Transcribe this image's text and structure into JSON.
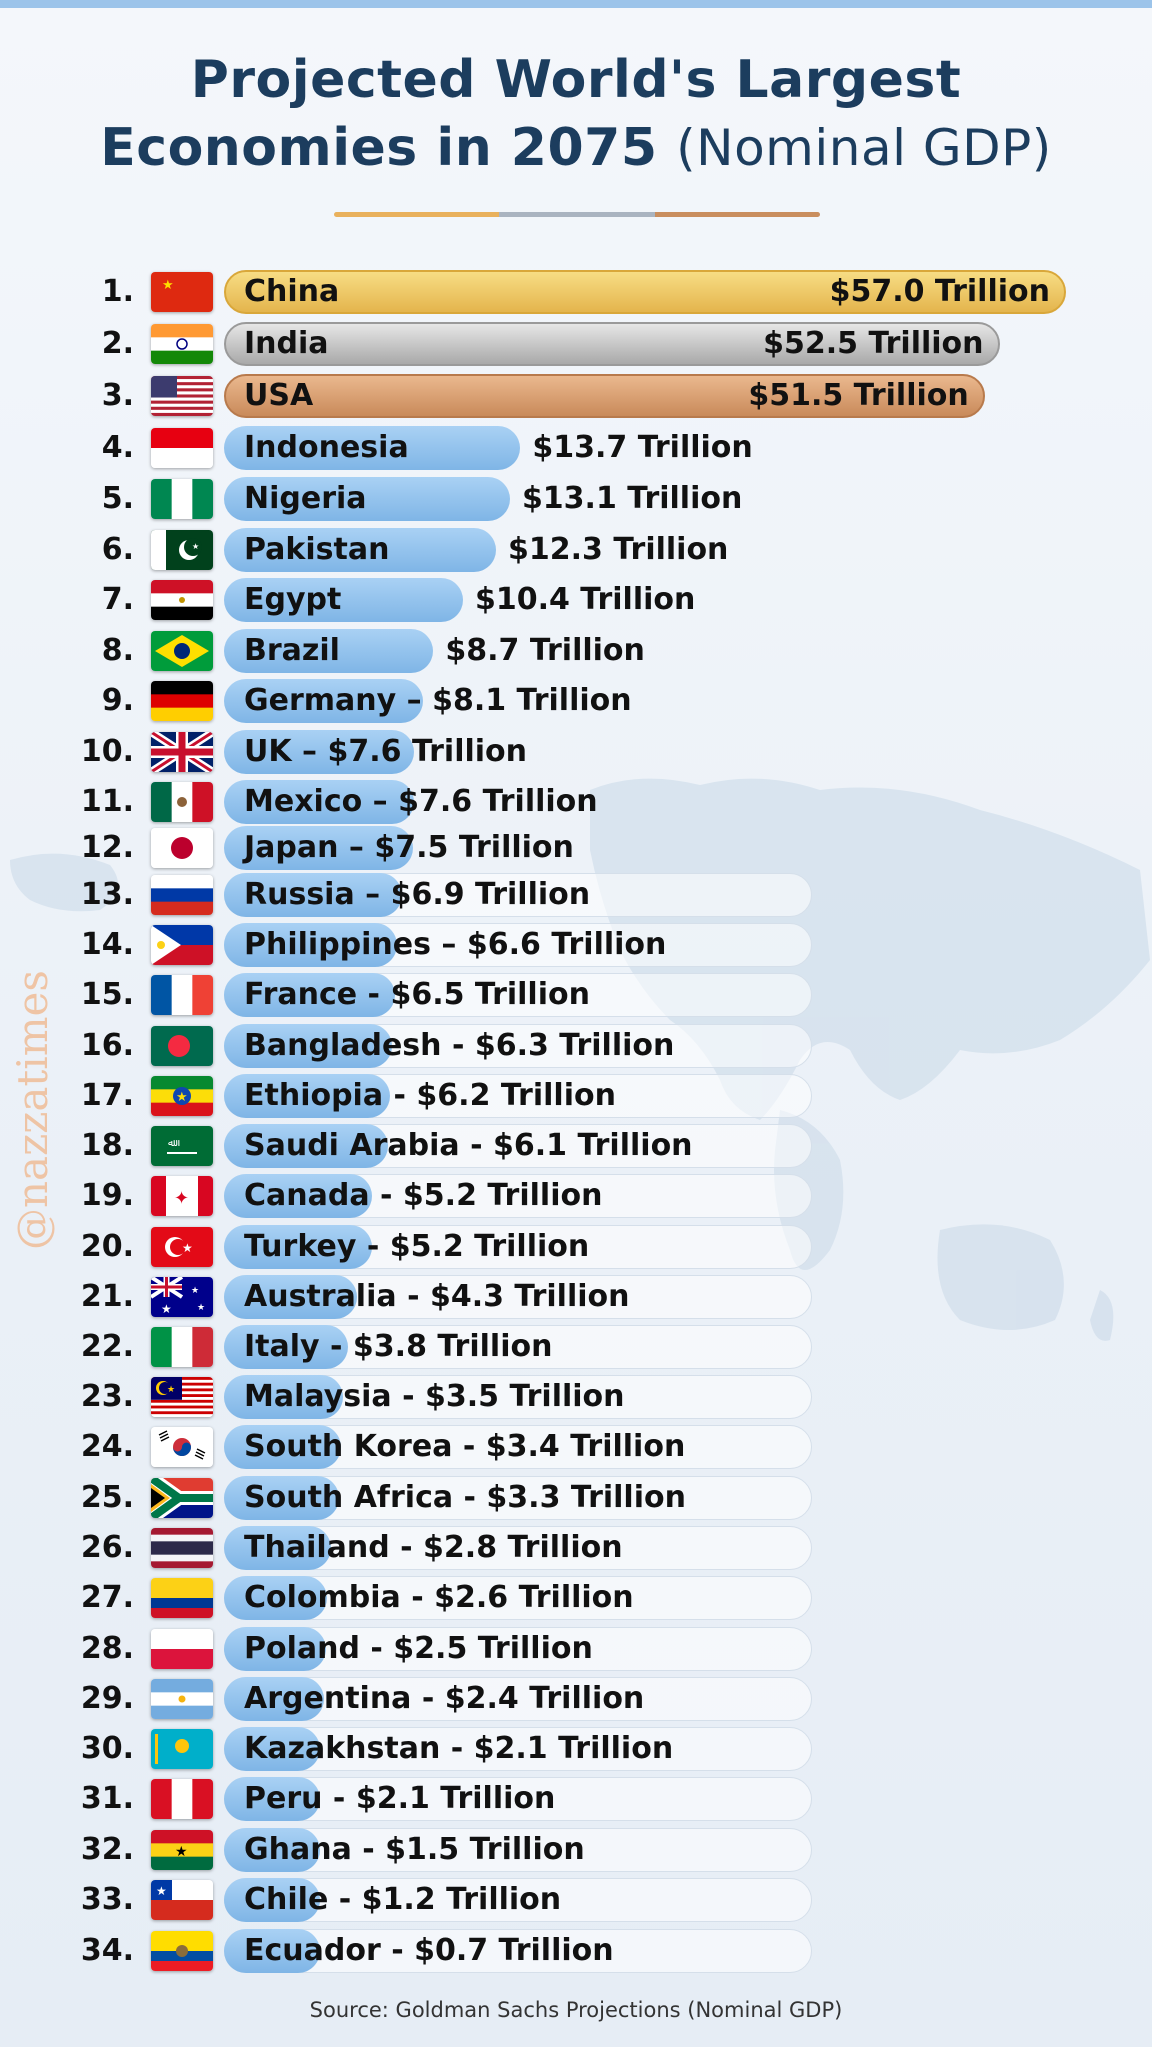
{
  "title_line1": "Projected World's Largest",
  "title_line2": "Economies in 2075",
  "title_paren": "(Nominal GDP)",
  "watermark": "@nazzatimes",
  "source": "Source: Goldman Sachs Projections (Nominal GDP)",
  "colors": {
    "title": "#1c3d5e",
    "gold": "#e4b54d",
    "silver": "#a9a9a9",
    "bronze": "#c98a5a",
    "bar_blue": "#7fb5e6"
  },
  "chart_data": {
    "type": "bar",
    "orientation": "horizontal",
    "unit": "Trillion",
    "grid": false,
    "rows": [
      {
        "rank": "1.",
        "country": "China",
        "value": 57.0,
        "label": "China",
        "value_label": "$57.0 Trillion",
        "flag": "cn"
      },
      {
        "rank": "2.",
        "country": "India",
        "value": 52.5,
        "label": "India",
        "value_label": "$52.5 Trillion",
        "flag": "in"
      },
      {
        "rank": "3.",
        "country": "USA",
        "value": 51.5,
        "label": "USA",
        "value_label": "$51.5 Trillion",
        "flag": "us"
      },
      {
        "rank": "4.",
        "country": "Indonesia",
        "value": 13.7,
        "label": "Indonesia",
        "value_label": "$13.7 Trillion",
        "flag": "id"
      },
      {
        "rank": "5.",
        "country": "Nigeria",
        "value": 13.1,
        "label": "Nigeria",
        "value_label": "$13.1 Trillion",
        "flag": "ng"
      },
      {
        "rank": "6.",
        "country": "Pakistan",
        "value": 12.3,
        "label": "Pakistan",
        "value_label": "$12.3 Trillion",
        "flag": "pk"
      },
      {
        "rank": "7.",
        "country": "Egypt",
        "value": 10.4,
        "label": "Egypt",
        "value_label": "$10.4 Trillion",
        "flag": "eg"
      },
      {
        "rank": "8.",
        "country": "Brazil",
        "value": 8.7,
        "label": "Brazil",
        "value_label": "$8.7 Trillion",
        "flag": "br"
      },
      {
        "rank": "9.",
        "country": "Germany",
        "value": 8.1,
        "label": "Germany – $8.1 Trillion",
        "flag": "de"
      },
      {
        "rank": "10.",
        "country": "UK",
        "value": 7.6,
        "label": "UK – $7.6 Trillion",
        "flag": "gb"
      },
      {
        "rank": "11.",
        "country": "Mexico",
        "value": 7.6,
        "label": "Mexico – $7.6 Trillion",
        "flag": "mx"
      },
      {
        "rank": "12.",
        "country": "Japan",
        "value": 7.5,
        "label": "Japan – $7.5 Trillion",
        "flag": "jp"
      },
      {
        "rank": "13.",
        "country": "Russia",
        "value": 6.9,
        "label": "Russia – $6.9 Trillion",
        "flag": "ru"
      },
      {
        "rank": "14.",
        "country": "Philippines",
        "value": 6.6,
        "label": "Philippines – $6.6 Trillion",
        "flag": "ph"
      },
      {
        "rank": "15.",
        "country": "France",
        "value": 6.5,
        "label": "France - $6.5 Trillion",
        "flag": "fr"
      },
      {
        "rank": "16.",
        "country": "Bangladesh",
        "value": 6.3,
        "label": "Bangladesh - $6.3 Trillion",
        "flag": "bd"
      },
      {
        "rank": "17.",
        "country": "Ethiopia",
        "value": 6.2,
        "label": "Ethiopia - $6.2 Trillion",
        "flag": "et"
      },
      {
        "rank": "18.",
        "country": "Saudi Arabia",
        "value": 6.1,
        "label": "Saudi Arabia - $6.1 Trillion",
        "flag": "sa"
      },
      {
        "rank": "19.",
        "country": "Canada",
        "value": 5.2,
        "label": "Canada - $5.2 Trillion",
        "flag": "ca"
      },
      {
        "rank": "20.",
        "country": "Turkey",
        "value": 5.2,
        "label": "Turkey - $5.2 Trillion",
        "flag": "tr"
      },
      {
        "rank": "21.",
        "country": "Australia",
        "value": 4.3,
        "label": "Australia - $4.3 Trillion",
        "flag": "au"
      },
      {
        "rank": "22.",
        "country": "Italy",
        "value": 3.8,
        "label": "Italy - $3.8 Trillion",
        "flag": "it"
      },
      {
        "rank": "23.",
        "country": "Malaysia",
        "value": 3.5,
        "label": "Malaysia - $3.5 Trillion",
        "flag": "my"
      },
      {
        "rank": "24.",
        "country": "South Korea",
        "value": 3.4,
        "label": "South Korea - $3.4 Trillion",
        "flag": "kr"
      },
      {
        "rank": "25.",
        "country": "South Africa",
        "value": 3.3,
        "label": "South Africa - $3.3 Trillion",
        "flag": "za"
      },
      {
        "rank": "26.",
        "country": "Thailand",
        "value": 2.8,
        "label": "Thailand - $2.8 Trillion",
        "flag": "th"
      },
      {
        "rank": "27.",
        "country": "Colombia",
        "value": 2.6,
        "label": "Colombia - $2.6 Trillion",
        "flag": "co"
      },
      {
        "rank": "28.",
        "country": "Poland",
        "value": 2.5,
        "label": "Poland - $2.5 Trillion",
        "flag": "pl"
      },
      {
        "rank": "29.",
        "country": "Argentina",
        "value": 2.4,
        "label": "Argentina - $2.4 Trillion",
        "flag": "ar"
      },
      {
        "rank": "30.",
        "country": "Kazakhstan",
        "value": 2.1,
        "label": "Kazakhstan - $2.1 Trillion",
        "flag": "kz"
      },
      {
        "rank": "31.",
        "country": "Peru",
        "value": 2.1,
        "label": "Peru - $2.1 Trillion",
        "flag": "pe"
      },
      {
        "rank": "32.",
        "country": "Ghana",
        "value": 1.5,
        "label": "Ghana - $1.5 Trillion",
        "flag": "gh"
      },
      {
        "rank": "33.",
        "country": "Chile",
        "value": 1.2,
        "label": "Chile - $1.2 Trillion",
        "flag": "cl"
      },
      {
        "rank": "34.",
        "country": "Ecuador",
        "value": 0.7,
        "label": "Ecuador - $0.7 Trillion",
        "flag": "ec"
      }
    ]
  }
}
